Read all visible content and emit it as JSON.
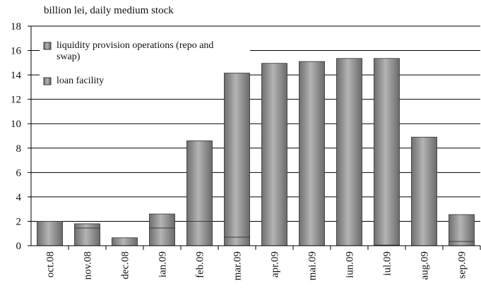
{
  "chart_data": {
    "type": "stacked_bar",
    "title": "billion lei, daily medium stock",
    "categories": [
      "oct.08",
      "nov.08",
      "dec.08",
      "ian.09",
      "feb.09",
      "mar.09",
      "apr.09",
      "mai.09",
      "iun.09",
      "iul.09",
      "aug.09",
      "sep.09"
    ],
    "series": [
      {
        "name": "liquidity provision operations (repo and swap)",
        "color": "#8c8c8c",
        "values": [
          0,
          0.35,
          0,
          1.15,
          6.6,
          13.45,
          14.95,
          15.1,
          15.35,
          15.3,
          8.9,
          2.2
        ]
      },
      {
        "name": "loan facility",
        "color": "#8c8c8c",
        "values": [
          2.0,
          1.45,
          0.65,
          1.45,
          2.0,
          0.7,
          0,
          0,
          0,
          0.05,
          0,
          0.35
        ]
      }
    ],
    "ylim": [
      0,
      18
    ],
    "yticks": [
      0,
      2,
      4,
      6,
      8,
      10,
      12,
      14,
      16,
      18
    ],
    "grid": true
  }
}
